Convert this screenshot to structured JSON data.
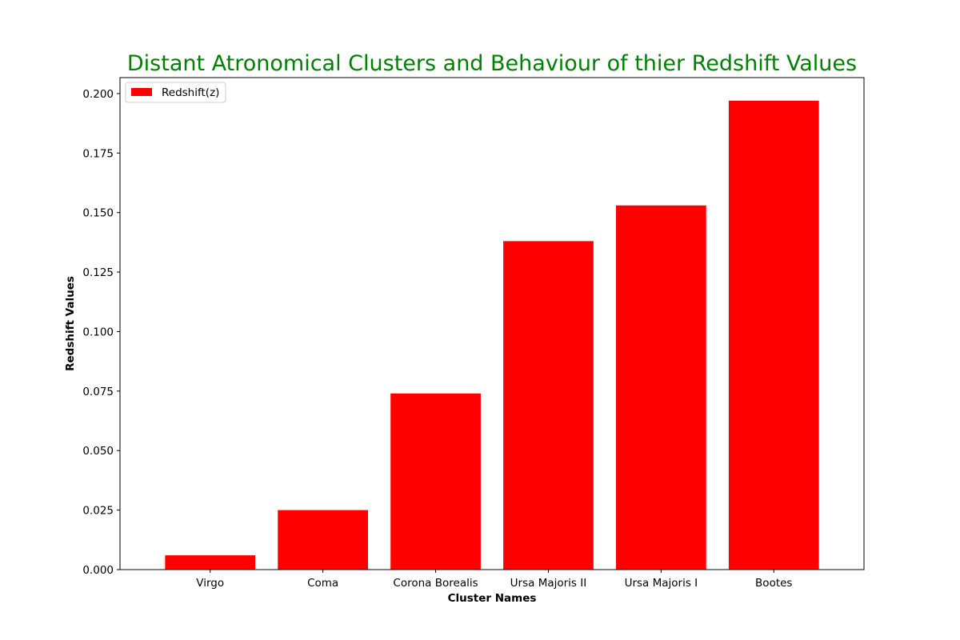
{
  "chart_data": {
    "type": "bar",
    "title": "Distant Atronomical Clusters and Behaviour of thier Redshift Values",
    "title_color": "#008000",
    "xlabel": "Cluster Names",
    "ylabel": "Redshift Values",
    "categories": [
      "Virgo",
      "Coma",
      "Corona Borealis",
      "Ursa Majoris II",
      "Ursa Majoris I",
      "Bootes"
    ],
    "series": [
      {
        "name": "Redshift(z)",
        "color": "#ff0000",
        "values": [
          0.006,
          0.025,
          0.074,
          0.138,
          0.153,
          0.197
        ]
      }
    ],
    "ylim": [
      0,
      0.2067
    ],
    "yticks": [
      "0.000",
      "0.025",
      "0.050",
      "0.075",
      "0.100",
      "0.125",
      "0.150",
      "0.175",
      "0.200"
    ],
    "grid": false,
    "legend_position": "top-left"
  }
}
